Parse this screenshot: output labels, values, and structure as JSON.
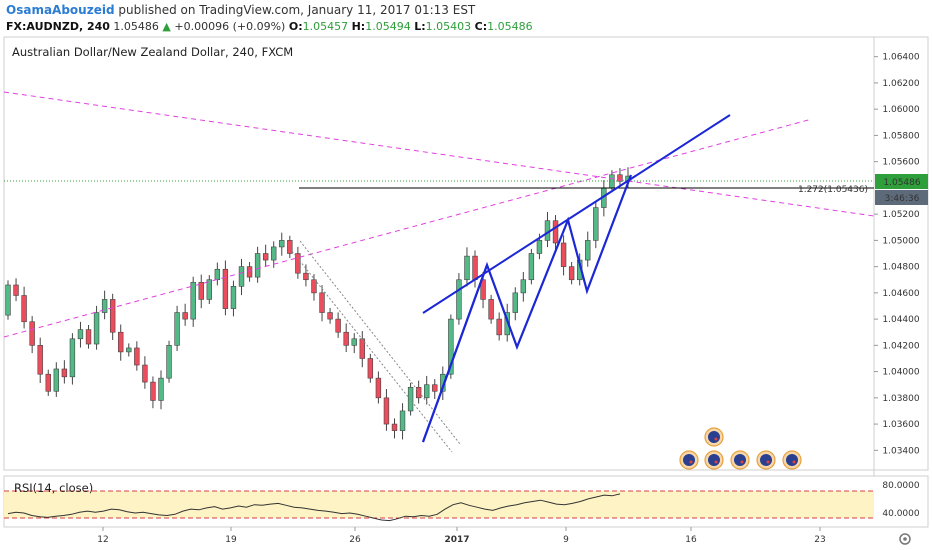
{
  "header": {
    "author": "OsamaAbouzeid",
    "published": " published on TradingView.com, January 11, 2017 01:13 EST",
    "symbol": "FX:AUDNZD, 240",
    "last": "1.05486",
    "arrow": "▲",
    "change": "+0.00096 (+0.09%)",
    "o_label": "O:",
    "o_value": "1.05457",
    "h_label": "H:",
    "h_value": "1.05494",
    "l_label": "L:",
    "l_value": "1.05403",
    "c_label": "C:",
    "c_value": "1.05486"
  },
  "colors": {
    "bull": "#53b987",
    "bear": "#eb4d5c",
    "wick": "#444444",
    "pattern": "#1c27d6",
    "trendline": "#e040e0",
    "price_tag": "#2e9f3a",
    "rsi_line": "#333333",
    "rsi_band": "#fdf3c4",
    "rsi_bound": "#d64040"
  },
  "chart_data": [
    {
      "type": "candlestick",
      "title": "Australian Dollar/New Zealand Dollar, 240, FXCM",
      "ylim": [
        1.0325,
        1.0655
      ],
      "y_ticks": [
        "1.06400",
        "1.06200",
        "1.06000",
        "1.05800",
        "1.05600",
        "1.05200",
        "1.05000",
        "1.04800",
        "1.04600",
        "1.04400",
        "1.04200",
        "1.04000",
        "1.03800",
        "1.03600",
        "1.03400"
      ],
      "x_ticks": [
        "12",
        "19",
        "26",
        "2017",
        "9",
        "16",
        "23"
      ],
      "last_price": "1.05486",
      "countdown": "3:46:36",
      "fib_level": {
        "label": "1.272(1.05436)",
        "value": 1.05436
      },
      "candle_seed": [
        [
          1.0443,
          1.0466
        ],
        [
          1.0466,
          1.0458
        ],
        [
          1.0458,
          1.0438
        ],
        [
          1.0438,
          1.042
        ],
        [
          1.042,
          1.0398
        ],
        [
          1.0398,
          1.0385
        ],
        [
          1.0385,
          1.0402
        ],
        [
          1.0402,
          1.0396
        ],
        [
          1.0396,
          1.0425
        ],
        [
          1.0425,
          1.0432
        ],
        [
          1.0432,
          1.0421
        ],
        [
          1.0421,
          1.0445
        ],
        [
          1.0445,
          1.0455
        ],
        [
          1.0455,
          1.043
        ],
        [
          1.043,
          1.0415
        ],
        [
          1.0415,
          1.0418
        ],
        [
          1.0418,
          1.0405
        ],
        [
          1.0405,
          1.0392
        ],
        [
          1.0392,
          1.0378
        ],
        [
          1.0378,
          1.0395
        ],
        [
          1.0395,
          1.042
        ],
        [
          1.042,
          1.0445
        ],
        [
          1.0445,
          1.044
        ],
        [
          1.044,
          1.0468
        ],
        [
          1.0468,
          1.0455
        ],
        [
          1.0455,
          1.047
        ],
        [
          1.047,
          1.0478
        ],
        [
          1.0478,
          1.0448
        ],
        [
          1.0448,
          1.0465
        ],
        [
          1.0465,
          1.048
        ],
        [
          1.048,
          1.0472
        ],
        [
          1.0472,
          1.049
        ],
        [
          1.049,
          1.0485
        ],
        [
          1.0485,
          1.0495
        ],
        [
          1.0495,
          1.05
        ],
        [
          1.05,
          1.049
        ],
        [
          1.049,
          1.0475
        ],
        [
          1.0475,
          1.047
        ],
        [
          1.047,
          1.046
        ],
        [
          1.046,
          1.0445
        ],
        [
          1.0445,
          1.044
        ],
        [
          1.044,
          1.043
        ],
        [
          1.043,
          1.042
        ],
        [
          1.042,
          1.0425
        ],
        [
          1.0425,
          1.041
        ],
        [
          1.041,
          1.0395
        ],
        [
          1.0395,
          1.038
        ],
        [
          1.038,
          1.036
        ],
        [
          1.036,
          1.0355
        ],
        [
          1.0355,
          1.037
        ],
        [
          1.037,
          1.0388
        ],
        [
          1.0388,
          1.038
        ],
        [
          1.038,
          1.039
        ],
        [
          1.039,
          1.0385
        ],
        [
          1.0385,
          1.0398
        ],
        [
          1.0398,
          1.044
        ],
        [
          1.044,
          1.047
        ],
        [
          1.047,
          1.0488
        ],
        [
          1.0488,
          1.047
        ],
        [
          1.047,
          1.0455
        ],
        [
          1.0455,
          1.044
        ],
        [
          1.044,
          1.0428
        ],
        [
          1.0428,
          1.0445
        ],
        [
          1.0445,
          1.046
        ],
        [
          1.046,
          1.047
        ],
        [
          1.047,
          1.049
        ],
        [
          1.049,
          1.05
        ],
        [
          1.05,
          1.0515
        ],
        [
          1.0515,
          1.0498
        ],
        [
          1.0498,
          1.048
        ],
        [
          1.048,
          1.047
        ],
        [
          1.047,
          1.0485
        ],
        [
          1.0485,
          1.05
        ],
        [
          1.05,
          1.0525
        ],
        [
          1.0525,
          1.054
        ],
        [
          1.054,
          1.055
        ],
        [
          1.055,
          1.0545
        ],
        [
          1.0545,
          1.0549
        ]
      ]
    },
    {
      "type": "line",
      "title": "RSI(14, close)",
      "ylim": [
        20,
        100
      ],
      "y_ticks": [
        "80.0000",
        "40.0000"
      ],
      "bounds": [
        70,
        30
      ],
      "values": [
        41,
        43,
        42,
        38,
        36,
        35,
        37,
        38,
        40,
        43,
        45,
        43,
        45,
        48,
        47,
        44,
        42,
        43,
        41,
        39,
        38,
        40,
        45,
        48,
        47,
        50,
        52,
        48,
        50,
        53,
        51,
        55,
        54,
        56,
        57,
        54,
        51,
        50,
        48,
        46,
        45,
        43,
        41,
        42,
        40,
        37,
        34,
        31,
        30,
        33,
        37,
        36,
        38,
        37,
        40,
        48,
        55,
        58,
        54,
        51,
        48,
        46,
        50,
        53,
        55,
        58,
        60,
        62,
        59,
        56,
        55,
        57,
        60,
        64,
        67,
        70,
        69,
        72
      ]
    }
  ]
}
